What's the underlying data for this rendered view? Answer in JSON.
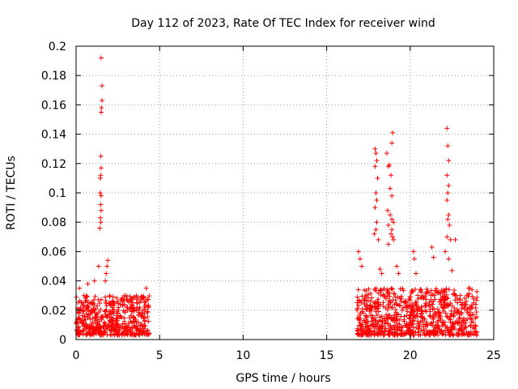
{
  "chart_data": {
    "type": "scatter",
    "title": "Day 112 of 2023, Rate Of TEC Index for receiver wind",
    "xlabel": "GPS time / hours",
    "ylabel": "ROTI / TECUs",
    "xlim": [
      0,
      25
    ],
    "ylim": [
      0,
      0.2
    ],
    "x_ticks": [
      0,
      5,
      10,
      15,
      20,
      25
    ],
    "x_tick_labels": [
      "0",
      "5",
      "10",
      "15",
      "20",
      "25"
    ],
    "y_ticks": [
      0,
      0.02,
      0.04,
      0.06,
      0.08,
      0.1,
      0.12,
      0.14,
      0.16,
      0.18,
      0.2
    ],
    "y_tick_labels": [
      "0",
      "0.02",
      "0.04",
      "0.06",
      "0.08",
      "0.1",
      "0.12",
      "0.14",
      "0.16",
      "0.18",
      "0.2"
    ],
    "grid": true,
    "marker": "+",
    "color": "#ff0000",
    "series": [
      {
        "segments": [
          {
            "x_start": 0.0,
            "x_end": 4.4,
            "y_min": 0.003,
            "y_max": 0.03,
            "count": 500
          },
          {
            "x_start": 16.8,
            "x_end": 24.0,
            "y_min": 0.003,
            "y_max": 0.035,
            "count": 800
          }
        ],
        "points": [
          [
            1.5,
            0.192
          ],
          [
            1.55,
            0.173
          ],
          [
            1.55,
            0.163
          ],
          [
            1.52,
            0.158
          ],
          [
            1.5,
            0.155
          ],
          [
            1.48,
            0.125
          ],
          [
            1.5,
            0.117
          ],
          [
            1.47,
            0.112
          ],
          [
            1.45,
            0.11
          ],
          [
            1.45,
            0.1
          ],
          [
            1.5,
            0.098
          ],
          [
            1.47,
            0.092
          ],
          [
            1.5,
            0.088
          ],
          [
            1.45,
            0.083
          ],
          [
            1.48,
            0.08
          ],
          [
            1.42,
            0.076
          ],
          [
            1.35,
            0.05
          ],
          [
            1.9,
            0.054
          ],
          [
            1.85,
            0.05
          ],
          [
            1.8,
            0.045
          ],
          [
            1.75,
            0.04
          ],
          [
            0.7,
            0.038
          ],
          [
            1.1,
            0.04
          ],
          [
            0.2,
            0.035
          ],
          [
            4.2,
            0.035
          ],
          [
            3.0,
            0.03
          ],
          [
            16.9,
            0.06
          ],
          [
            17.0,
            0.055
          ],
          [
            17.1,
            0.05
          ],
          [
            17.9,
            0.13
          ],
          [
            17.95,
            0.127
          ],
          [
            18.0,
            0.122
          ],
          [
            17.9,
            0.118
          ],
          [
            18.05,
            0.11
          ],
          [
            17.95,
            0.1
          ],
          [
            18.0,
            0.095
          ],
          [
            17.9,
            0.09
          ],
          [
            18.0,
            0.08
          ],
          [
            17.95,
            0.075
          ],
          [
            17.85,
            0.072
          ],
          [
            18.1,
            0.068
          ],
          [
            18.2,
            0.048
          ],
          [
            18.3,
            0.045
          ],
          [
            18.6,
            0.127
          ],
          [
            18.75,
            0.119
          ],
          [
            18.95,
            0.141
          ],
          [
            18.9,
            0.134
          ],
          [
            18.7,
            0.118
          ],
          [
            18.85,
            0.112
          ],
          [
            18.8,
            0.103
          ],
          [
            18.9,
            0.098
          ],
          [
            18.65,
            0.088
          ],
          [
            18.8,
            0.085
          ],
          [
            18.9,
            0.082
          ],
          [
            19.0,
            0.08
          ],
          [
            18.7,
            0.078
          ],
          [
            18.9,
            0.075
          ],
          [
            18.85,
            0.072
          ],
          [
            18.95,
            0.07
          ],
          [
            19.0,
            0.068
          ],
          [
            18.7,
            0.065
          ],
          [
            19.2,
            0.05
          ],
          [
            19.3,
            0.045
          ],
          [
            20.2,
            0.06
          ],
          [
            20.25,
            0.055
          ],
          [
            20.35,
            0.045
          ],
          [
            21.3,
            0.063
          ],
          [
            21.4,
            0.056
          ],
          [
            22.2,
            0.144
          ],
          [
            22.25,
            0.132
          ],
          [
            22.3,
            0.122
          ],
          [
            22.2,
            0.112
          ],
          [
            22.3,
            0.105
          ],
          [
            22.25,
            0.1
          ],
          [
            22.2,
            0.095
          ],
          [
            22.3,
            0.085
          ],
          [
            22.25,
            0.082
          ],
          [
            22.35,
            0.078
          ],
          [
            22.2,
            0.07
          ],
          [
            22.4,
            0.068
          ],
          [
            22.7,
            0.068
          ],
          [
            22.1,
            0.06
          ],
          [
            22.3,
            0.055
          ],
          [
            22.5,
            0.047
          ],
          [
            23.5,
            0.035
          ],
          [
            23.7,
            0.034
          ],
          [
            23.8,
            0.025
          ]
        ]
      }
    ]
  }
}
